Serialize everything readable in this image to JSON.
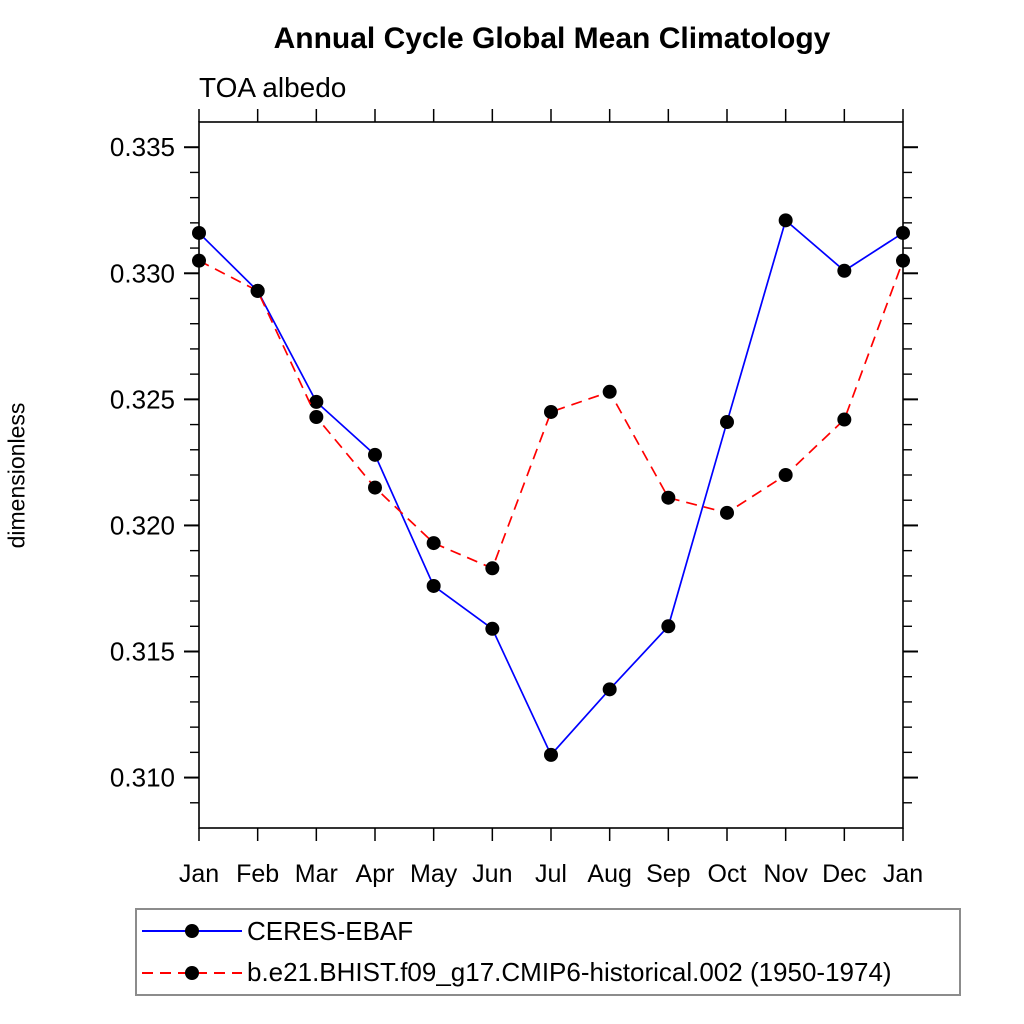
{
  "chart_data": {
    "type": "line",
    "title": "Annual Cycle Global Mean Climatology",
    "subtitle": "TOA albedo",
    "ylabel": "dimensionless",
    "xlabel": "",
    "categories": [
      "Jan",
      "Feb",
      "Mar",
      "Apr",
      "May",
      "Jun",
      "Jul",
      "Aug",
      "Sep",
      "Oct",
      "Nov",
      "Dec",
      "Jan"
    ],
    "ylim": [
      0.308,
      0.336
    ],
    "ytick_labeled": [
      0.31,
      0.315,
      0.32,
      0.325,
      0.33,
      0.335
    ],
    "ytick_minor_step": 0.001,
    "ytick_major_step": 0.005,
    "grid": false,
    "legend_position": "bottom-left",
    "axis_color": "#000000",
    "series": [
      {
        "name": "CERES-EBAF",
        "color": "#0000ff",
        "line_style": "solid",
        "marker": "filled-circle",
        "marker_color": "#000000",
        "values": [
          0.3316,
          0.3293,
          0.3249,
          0.3228,
          0.3176,
          0.3159,
          0.3109,
          0.3135,
          0.316,
          0.3241,
          0.3321,
          0.3301,
          0.3316
        ]
      },
      {
        "name": "b.e21.BHIST.f09_g17.CMIP6-historical.002 (1950-1974)",
        "color": "#ff0000",
        "line_style": "dashed",
        "marker": "filled-circle",
        "marker_color": "#000000",
        "values": [
          0.3305,
          0.3293,
          0.3243,
          0.3215,
          0.3193,
          0.3183,
          0.3245,
          0.3253,
          0.3211,
          0.3205,
          0.322,
          0.3242,
          0.3305
        ]
      }
    ]
  }
}
